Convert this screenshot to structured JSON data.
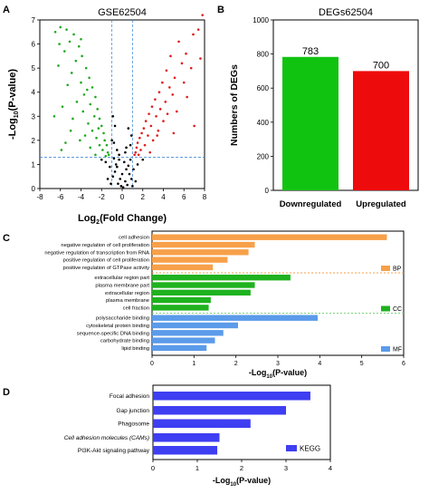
{
  "chart_data": [
    {
      "panel": "A",
      "type": "scatter",
      "title": "GSE62504",
      "xlabel_main": "Log",
      "xlabel_sub": "2",
      "xlabel_rest": "(Fold Change)",
      "ylabel_main": "-Log",
      "ylabel_sub": "10",
      "ylabel_rest": "(P-value)",
      "xlim": [
        -8,
        8
      ],
      "ylim": [
        0,
        7
      ],
      "xticks": [
        -8,
        -6,
        -4,
        -2,
        0,
        2,
        4,
        6,
        8
      ],
      "yticks": [
        0,
        1,
        2,
        3,
        4,
        5,
        6,
        7
      ],
      "fc_thresholds": [
        -1,
        1
      ],
      "p_threshold": 1.3,
      "colors": {
        "down": "#1fa81f",
        "up": "#e01b1b",
        "ns": "#000000",
        "threshold": "#4a8fd6"
      },
      "series": [
        {
          "group": "up",
          "points": [
            [
              7.8,
              7.2
            ],
            [
              7.4,
              6.6
            ],
            [
              6.9,
              6.4
            ],
            [
              5.5,
              6.1
            ],
            [
              6.2,
              5.6
            ],
            [
              4.7,
              5.5
            ],
            [
              5.8,
              5.2
            ],
            [
              6.7,
              5.0
            ],
            [
              4.3,
              4.9
            ],
            [
              5.1,
              4.6
            ],
            [
              3.9,
              4.4
            ],
            [
              4.6,
              4.2
            ],
            [
              3.6,
              4.0
            ],
            [
              4.9,
              3.9
            ],
            [
              3.2,
              3.7
            ],
            [
              4.2,
              3.6
            ],
            [
              2.9,
              3.4
            ],
            [
              3.7,
              3.3
            ],
            [
              2.6,
              3.1
            ],
            [
              5.3,
              3.2
            ],
            [
              3.3,
              3.0
            ],
            [
              2.3,
              2.8
            ],
            [
              4.0,
              2.8
            ],
            [
              2.8,
              2.6
            ],
            [
              2.1,
              2.5
            ],
            [
              3.5,
              2.4
            ],
            [
              1.9,
              2.3
            ],
            [
              2.5,
              2.2
            ],
            [
              1.7,
              2.1
            ],
            [
              3.0,
              2.0
            ],
            [
              1.5,
              1.9
            ],
            [
              2.2,
              1.8
            ],
            [
              1.4,
              1.7
            ],
            [
              1.8,
              1.6
            ],
            [
              1.3,
              1.5
            ],
            [
              2.7,
              1.5
            ],
            [
              1.6,
              1.4
            ],
            [
              1.2,
              1.4
            ],
            [
              7.0,
              2.6
            ],
            [
              6.3,
              3.8
            ],
            [
              5.0,
              2.3
            ],
            [
              6.0,
              4.4
            ],
            [
              7.6,
              5.4
            ],
            [
              4.4,
              3.1
            ],
            [
              3.4,
              2.2
            ]
          ]
        },
        {
          "group": "down",
          "points": [
            [
              -6.0,
              6.7
            ],
            [
              -5.4,
              6.6
            ],
            [
              -4.7,
              6.4
            ],
            [
              -6.5,
              6.5
            ],
            [
              -5.1,
              6.1
            ],
            [
              -4.2,
              5.9
            ],
            [
              -5.6,
              5.7
            ],
            [
              -3.9,
              5.5
            ],
            [
              -4.5,
              5.3
            ],
            [
              -6.2,
              5.1
            ],
            [
              -3.5,
              5.0
            ],
            [
              -4.9,
              4.8
            ],
            [
              -3.2,
              4.6
            ],
            [
              -4.0,
              4.4
            ],
            [
              -5.3,
              4.3
            ],
            [
              -2.9,
              4.2
            ],
            [
              -3.7,
              3.9
            ],
            [
              -2.6,
              3.8
            ],
            [
              -4.4,
              3.6
            ],
            [
              -3.1,
              3.5
            ],
            [
              -2.4,
              3.3
            ],
            [
              -3.8,
              3.2
            ],
            [
              -2.7,
              3.0
            ],
            [
              -2.2,
              2.9
            ],
            [
              -4.8,
              2.9
            ],
            [
              -3.3,
              2.7
            ],
            [
              -2.0,
              2.6
            ],
            [
              -2.9,
              2.4
            ],
            [
              -1.8,
              2.3
            ],
            [
              -3.6,
              2.2
            ],
            [
              -2.5,
              2.1
            ],
            [
              -1.7,
              2.0
            ],
            [
              -2.2,
              1.8
            ],
            [
              -1.5,
              1.8
            ],
            [
              -3.1,
              1.7
            ],
            [
              -1.9,
              1.6
            ],
            [
              -1.4,
              1.5
            ],
            [
              -2.6,
              1.4
            ],
            [
              -1.3,
              1.4
            ],
            [
              -1.6,
              1.35
            ],
            [
              -5.8,
              3.4
            ],
            [
              -6.6,
              3.0
            ],
            [
              -5.0,
              2.4
            ],
            [
              -4.1,
              2.0
            ],
            [
              -5.5,
              1.9
            ],
            [
              -6.1,
              6.0
            ],
            [
              -4.0,
              6.2
            ],
            [
              -3.4,
              4.1
            ],
            [
              -2.3,
              2.5
            ],
            [
              -5.9,
              1.6
            ]
          ]
        },
        {
          "group": "ns",
          "points": [
            [
              -0.3,
              1.2
            ],
            [
              0.2,
              1.1
            ],
            [
              -0.5,
              0.9
            ],
            [
              0.4,
              0.8
            ],
            [
              0.0,
              0.6
            ],
            [
              -0.7,
              0.7
            ],
            [
              0.7,
              0.6
            ],
            [
              -0.2,
              0.4
            ],
            [
              0.3,
              0.3
            ],
            [
              -0.9,
              0.5
            ],
            [
              0.9,
              0.4
            ],
            [
              -0.4,
              0.2
            ],
            [
              0.5,
              0.15
            ],
            [
              -1.2,
              0.9
            ],
            [
              1.1,
              0.8
            ],
            [
              -1.6,
              1.1
            ],
            [
              1.5,
              1.0
            ],
            [
              -2.0,
              1.2
            ],
            [
              2.0,
              1.2
            ],
            [
              -0.8,
              1.25
            ],
            [
              0.8,
              1.2
            ],
            [
              -0.1,
              0.1
            ],
            [
              0.1,
              0.05
            ],
            [
              -1.4,
              0.4
            ],
            [
              1.3,
              0.3
            ],
            [
              -0.6,
              1.0
            ],
            [
              0.6,
              0.95
            ],
            [
              -1.0,
              2.0
            ],
            [
              0.9,
              2.2
            ],
            [
              -0.7,
              2.6
            ],
            [
              0.6,
              2.5
            ],
            [
              -0.9,
              3.0
            ],
            [
              -0.5,
              1.6
            ],
            [
              0.4,
              1.7
            ],
            [
              -0.8,
              1.9
            ],
            [
              0.8,
              1.8
            ],
            [
              -0.3,
              1.4
            ],
            [
              0.3,
              1.5
            ],
            [
              -1.1,
              0.2
            ],
            [
              1.0,
              0.1
            ]
          ]
        }
      ]
    },
    {
      "panel": "B",
      "type": "bar",
      "title": "DEGs62504",
      "ylabel": "Numbers of DEGs",
      "categories": [
        "Downregulated",
        "Upregulated"
      ],
      "values": [
        783,
        700
      ],
      "value_labels": [
        "783",
        "700"
      ],
      "bar_colors": [
        "#11c311",
        "#ee0b0b"
      ],
      "ylim": [
        0,
        1000
      ],
      "yticks": [
        0,
        200,
        400,
        600,
        800,
        1000
      ]
    },
    {
      "panel": "C",
      "type": "bar",
      "orientation": "horizontal",
      "xlabel_main": "-Log",
      "xlabel_sub": "10",
      "xlabel_rest": "(P-value)",
      "xlim": [
        0,
        6
      ],
      "xticks": [
        0,
        1,
        2,
        3,
        4,
        5,
        6
      ],
      "groups": [
        {
          "name": "BP",
          "color": "#f7a04a",
          "divider": "#f7a04a",
          "categories": [
            "cell adhesion",
            "negative regulation of cell proliferation",
            "negative regulation of transcription from RNA",
            "positive regulation of cell proliferation",
            "positive regulation of GTPase activity"
          ],
          "values": [
            5.6,
            2.45,
            2.3,
            1.8,
            1.45
          ]
        },
        {
          "name": "CC",
          "color": "#1fb21f",
          "divider": "#7fd27f",
          "categories": [
            "extracellular region part",
            "plasma membrane part",
            "extracellular region",
            "plasma membrane",
            "cell fraction"
          ],
          "values": [
            3.3,
            2.45,
            2.35,
            1.4,
            1.35
          ]
        },
        {
          "name": "MF",
          "color": "#5b9bea",
          "divider": null,
          "categories": [
            "polysaccharide binding",
            "cytoskeletal protein binding",
            "sequence-specific DNA binding",
            "carbohydrate binding",
            "lipid binding"
          ],
          "values": [
            3.95,
            2.05,
            1.7,
            1.5,
            1.3
          ]
        }
      ]
    },
    {
      "panel": "D",
      "type": "bar",
      "orientation": "horizontal",
      "xlabel_main": "-Log",
      "xlabel_sub": "10",
      "xlabel_rest": "(P-value)",
      "xlim": [
        0,
        4
      ],
      "xticks": [
        0,
        1,
        2,
        3,
        4
      ],
      "legend": "KEGG",
      "color": "#3e3ef2",
      "categories": [
        "Focal adhesion",
        "Gap junction",
        "Phagosome",
        "Cell adhesion molecules (CAMs)",
        "PI3K-Akt signaling pathway"
      ],
      "italic": [
        false,
        false,
        false,
        true,
        false
      ],
      "values": [
        3.55,
        3.0,
        2.2,
        1.5,
        1.45
      ]
    }
  ]
}
